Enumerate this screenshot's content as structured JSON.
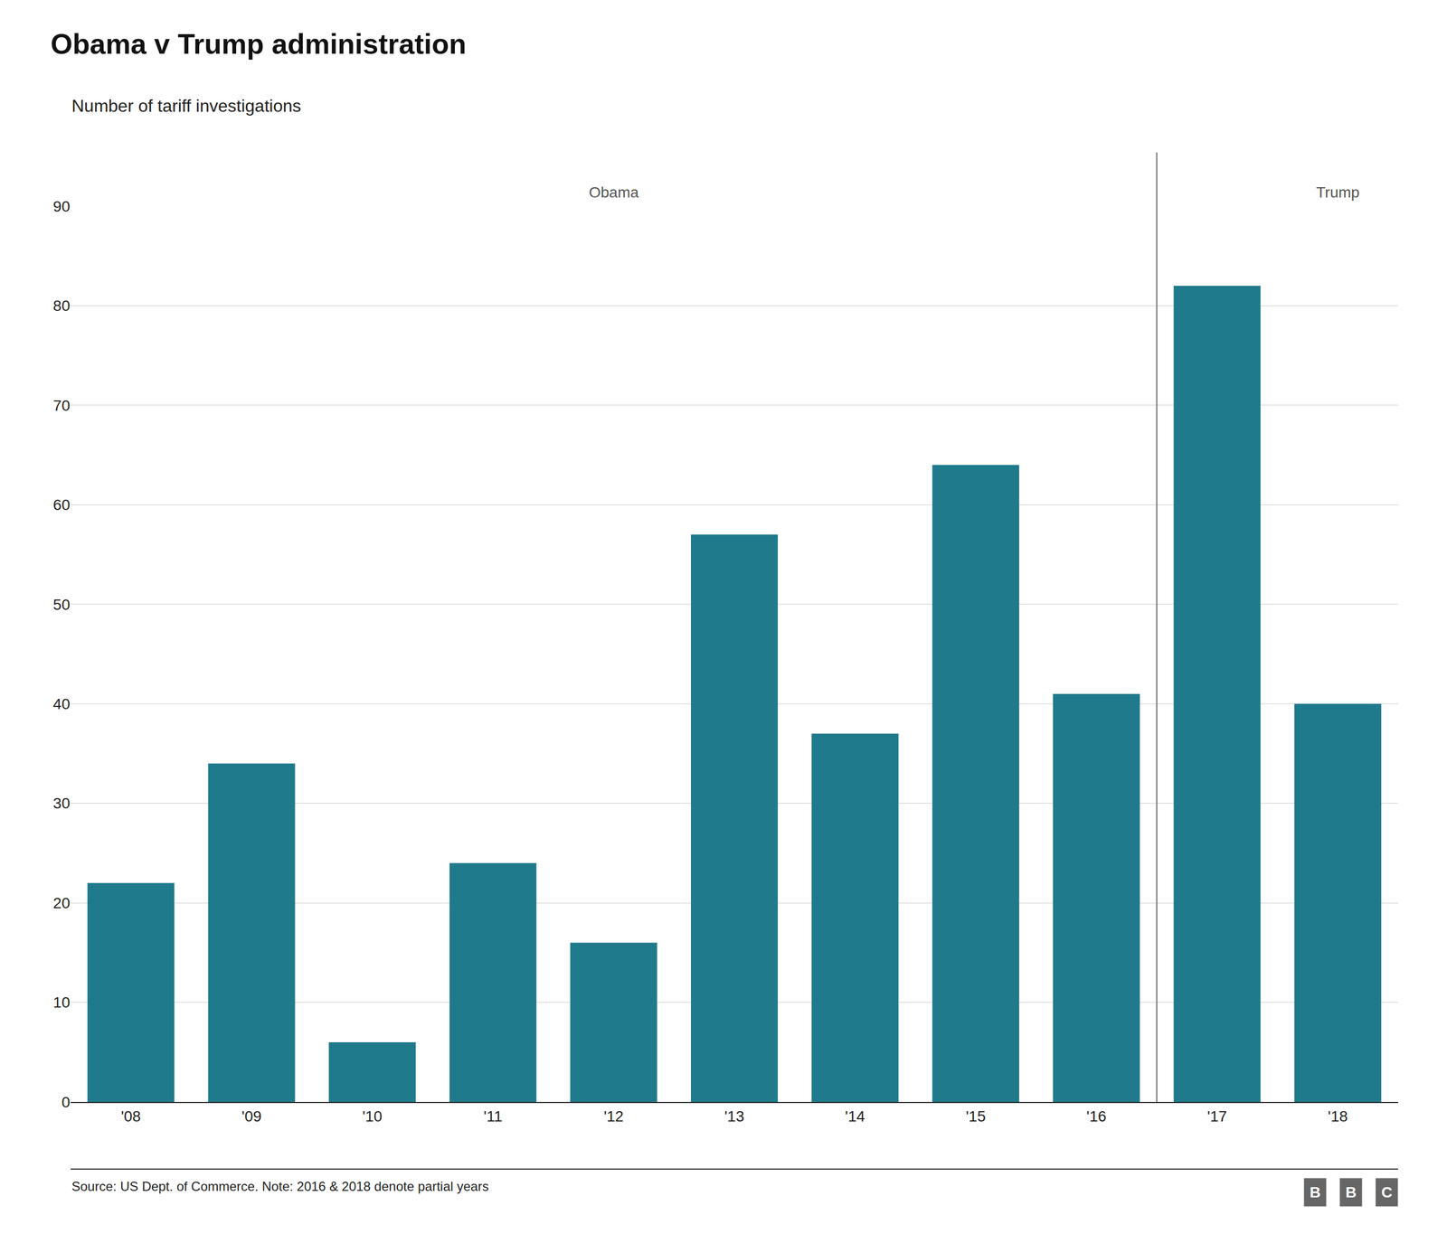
{
  "chart_data": {
    "type": "bar",
    "title": "Obama v Trump administration",
    "subtitle": "Number of tariff investigations",
    "categories": [
      "'08",
      "'09",
      "'10",
      "'11",
      "'12",
      "'13",
      "'14",
      "'15",
      "'16",
      "'17",
      "'18"
    ],
    "values": [
      22,
      34,
      6,
      24,
      16,
      57,
      37,
      64,
      41,
      82,
      40
    ],
    "color": "#1f7a8c",
    "ylim": [
      0,
      90
    ],
    "yticks": [
      0,
      10,
      20,
      30,
      40,
      50,
      60,
      70,
      80,
      90
    ],
    "grid": true,
    "annotations": [
      {
        "text": "Obama",
        "x": "'12"
      },
      {
        "text": "Trump",
        "x": "'18"
      }
    ],
    "divider": [
      "'16",
      "'17"
    ],
    "source": "Source: US Dept. of Commerce. Note: 2016 & 2018 denote partial years",
    "logo": [
      "B",
      "B",
      "C"
    ]
  }
}
